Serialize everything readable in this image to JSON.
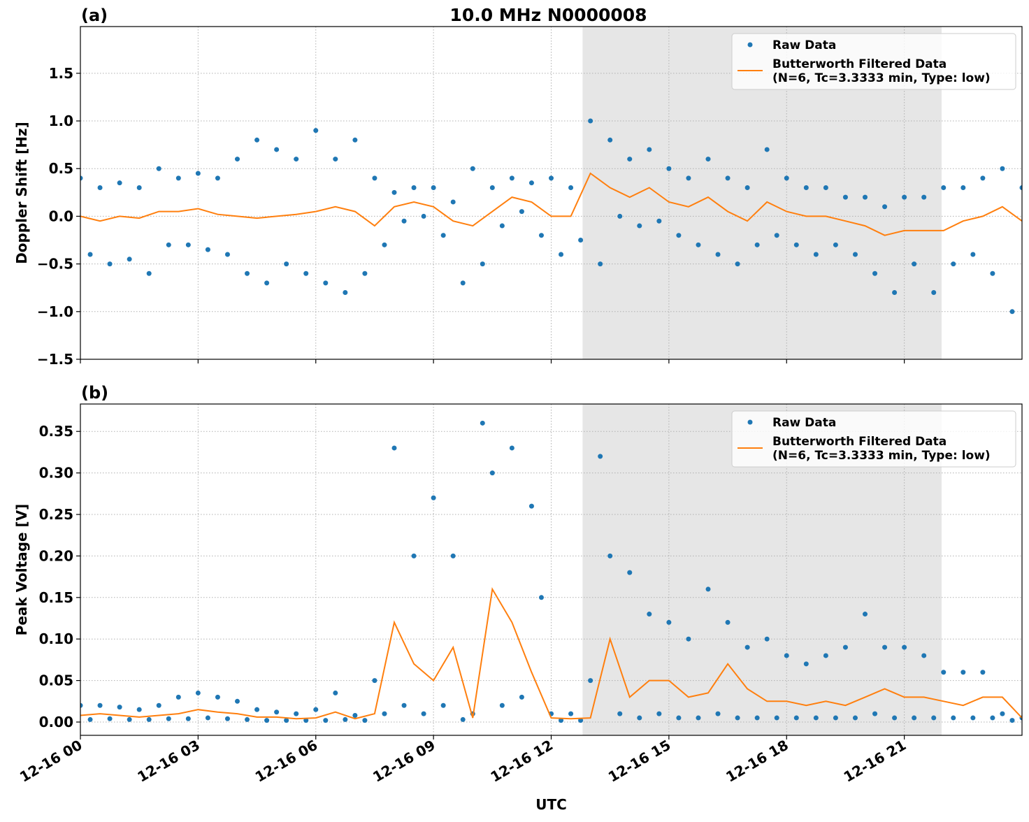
{
  "chart_data": [
    {
      "type": "line",
      "panel_label": "(a)",
      "title": "10.0 MHz N0000008",
      "ylabel": "Doppler Shift [Hz]",
      "xlim": [
        0,
        24
      ],
      "xticks": [
        0,
        3,
        6,
        9,
        12,
        15,
        18,
        21
      ],
      "ylim": [
        -1.5,
        1.99
      ],
      "yticks": [
        {
          "value": -1.5,
          "label": "−1.5"
        },
        {
          "value": -1,
          "label": "−1.0"
        },
        {
          "value": -0.5,
          "label": "−0.5"
        },
        {
          "value": 0,
          "label": "0.0"
        },
        0.5,
        {
          "value": 1,
          "label": "1.0"
        },
        1.5
      ],
      "grid": true,
      "legend": "upper right",
      "span": [
        12.8,
        21.95
      ],
      "span_color": "#e6e6e6",
      "series": [
        {
          "name": "Raw Data",
          "kind": "scatter",
          "color": "#1f77b4",
          "x": [
            0,
            0.25,
            0.5,
            0.75,
            1,
            1.25,
            1.5,
            1.75,
            2,
            2.25,
            2.5,
            2.75,
            3,
            3.25,
            3.5,
            3.75,
            4,
            4.25,
            4.5,
            4.75,
            5,
            5.25,
            5.5,
            5.75,
            6,
            6.25,
            6.5,
            6.75,
            7,
            7.25,
            7.5,
            7.75,
            8,
            8.25,
            8.5,
            8.75,
            9,
            9.25,
            9.5,
            9.75,
            10,
            10.25,
            10.5,
            10.75,
            11,
            11.25,
            11.5,
            11.75,
            12,
            12.25,
            12.5,
            12.75,
            13,
            13.25,
            13.5,
            13.75,
            14,
            14.25,
            14.5,
            14.75,
            15,
            15.25,
            15.5,
            15.75,
            16,
            16.25,
            16.5,
            16.75,
            17,
            17.25,
            17.5,
            17.75,
            18,
            18.25,
            18.5,
            18.75,
            19,
            19.25,
            19.5,
            19.75,
            20,
            20.25,
            20.5,
            20.75,
            21,
            21.25,
            21.5,
            21.75,
            22,
            22.25,
            22.5,
            22.75,
            23,
            23.25,
            23.5,
            23.75,
            24
          ],
          "values": [
            0.4,
            -0.4,
            0.3,
            -0.5,
            0.35,
            -0.45,
            0.3,
            -0.6,
            0.5,
            -0.3,
            0.4,
            -0.3,
            0.45,
            -0.35,
            0.4,
            -0.4,
            0.6,
            -0.6,
            0.8,
            -0.7,
            0.7,
            -0.5,
            0.6,
            -0.6,
            0.9,
            -0.7,
            0.6,
            -0.8,
            0.8,
            -0.6,
            0.4,
            -0.3,
            0.25,
            -0.05,
            0.3,
            0,
            0.3,
            -0.2,
            0.15,
            -0.7,
            0.5,
            -0.5,
            0.3,
            -0.1,
            0.4,
            0.05,
            0.35,
            -0.2,
            0.4,
            -0.4,
            0.3,
            -0.25,
            1,
            -0.5,
            0.8,
            0,
            0.6,
            -0.1,
            0.7,
            -0.05,
            0.5,
            -0.2,
            0.4,
            -0.3,
            0.6,
            -0.4,
            0.4,
            -0.5,
            0.3,
            -0.3,
            0.7,
            -0.2,
            0.4,
            -0.3,
            0.3,
            -0.4,
            0.3,
            -0.3,
            0.2,
            -0.4,
            0.2,
            -0.6,
            0.1,
            -0.8,
            0.2,
            -0.5,
            0.2,
            -0.8,
            0.3,
            -0.5,
            0.3,
            -0.4,
            0.4,
            -0.6,
            0.5,
            -1,
            0.3
          ]
        },
        {
          "name": "Butterworth Filtered Data\n(N=6, Tc=3.3333 min, Type: low)",
          "kind": "line",
          "color": "#ff7f0e",
          "x": [
            0,
            0.5,
            1,
            1.5,
            2,
            2.5,
            3,
            3.5,
            4,
            4.5,
            5,
            5.5,
            6,
            6.5,
            7,
            7.5,
            8,
            8.5,
            9,
            9.5,
            10,
            10.5,
            11,
            11.5,
            12,
            12.5,
            13,
            13.5,
            14,
            14.5,
            15,
            15.5,
            16,
            16.5,
            17,
            17.5,
            18,
            18.5,
            19,
            19.5,
            20,
            20.5,
            21,
            21.5,
            22,
            22.5,
            23,
            23.5,
            24
          ],
          "values": [
            0,
            -0.05,
            0,
            -0.02,
            0.05,
            0.05,
            0.08,
            0.02,
            0,
            -0.02,
            0,
            0.02,
            0.05,
            0.1,
            0.05,
            -0.1,
            0.1,
            0.15,
            0.1,
            -0.05,
            -0.1,
            0.05,
            0.2,
            0.15,
            0,
            0,
            0.45,
            0.3,
            0.2,
            0.3,
            0.15,
            0.1,
            0.2,
            0.05,
            -0.05,
            0.15,
            0.05,
            0,
            0,
            -0.05,
            -0.1,
            -0.2,
            -0.15,
            -0.15,
            -0.15,
            -0.05,
            0,
            0.1,
            -0.05
          ]
        }
      ]
    },
    {
      "type": "line",
      "panel_label": "(b)",
      "ylabel": "Peak Voltage [V]",
      "xlabel": "UTC",
      "xlim": [
        0,
        24
      ],
      "xticks": [
        {
          "value": 0,
          "label": "12-16 00"
        },
        {
          "value": 3,
          "label": "12-16 03"
        },
        {
          "value": 6,
          "label": "12-16 06"
        },
        {
          "value": 9,
          "label": "12-16 09"
        },
        {
          "value": 12,
          "label": "12-16 12"
        },
        {
          "value": 15,
          "label": "12-16 15"
        },
        {
          "value": 18,
          "label": "12-16 18"
        },
        {
          "value": 21,
          "label": "12-16 21"
        }
      ],
      "ylim": [
        -0.016,
        0.383
      ],
      "yticks": [
        {
          "value": 0,
          "label": "0.00"
        },
        0.05,
        {
          "value": 0.1,
          "label": "0.10"
        },
        0.15,
        {
          "value": 0.2,
          "label": "0.20"
        },
        0.25,
        {
          "value": 0.3,
          "label": "0.30"
        },
        0.35
      ],
      "grid": true,
      "legend": "upper right",
      "span": [
        12.8,
        21.95
      ],
      "span_color": "#e6e6e6",
      "series": [
        {
          "name": "Raw Data",
          "kind": "scatter",
          "color": "#1f77b4",
          "x": [
            0,
            0.25,
            0.5,
            0.75,
            1,
            1.25,
            1.5,
            1.75,
            2,
            2.25,
            2.5,
            2.75,
            3,
            3.25,
            3.5,
            3.75,
            4,
            4.25,
            4.5,
            4.75,
            5,
            5.25,
            5.5,
            5.75,
            6,
            6.25,
            6.5,
            6.75,
            7,
            7.25,
            7.5,
            7.75,
            8,
            8.25,
            8.5,
            8.75,
            9,
            9.25,
            9.5,
            9.75,
            10,
            10.25,
            10.5,
            10.75,
            11,
            11.25,
            11.5,
            11.75,
            12,
            12.25,
            12.5,
            12.75,
            13,
            13.25,
            13.5,
            13.75,
            14,
            14.25,
            14.5,
            14.75,
            15,
            15.25,
            15.5,
            15.75,
            16,
            16.25,
            16.5,
            16.75,
            17,
            17.25,
            17.5,
            17.75,
            18,
            18.25,
            18.5,
            18.75,
            19,
            19.25,
            19.5,
            19.75,
            20,
            20.25,
            20.5,
            20.75,
            21,
            21.25,
            21.5,
            21.75,
            22,
            22.25,
            22.5,
            22.75,
            23,
            23.25,
            23.5,
            23.75,
            24
          ],
          "values": [
            0.02,
            0.003,
            0.02,
            0.004,
            0.018,
            0.003,
            0.015,
            0.003,
            0.02,
            0.004,
            0.03,
            0.004,
            0.035,
            0.005,
            0.03,
            0.004,
            0.025,
            0.003,
            0.015,
            0.002,
            0.012,
            0.002,
            0.01,
            0.002,
            0.015,
            0.002,
            0.035,
            0.003,
            0.008,
            0.002,
            0.05,
            0.01,
            0.33,
            0.02,
            0.2,
            0.01,
            0.27,
            0.02,
            0.2,
            0.003,
            0.01,
            0.36,
            0.3,
            0.02,
            0.33,
            0.03,
            0.26,
            0.15,
            0.01,
            0.002,
            0.01,
            0.002,
            0.05,
            0.32,
            0.2,
            0.01,
            0.18,
            0.005,
            0.13,
            0.01,
            0.12,
            0.005,
            0.1,
            0.005,
            0.16,
            0.01,
            0.12,
            0.005,
            0.09,
            0.005,
            0.1,
            0.005,
            0.08,
            0.005,
            0.07,
            0.005,
            0.08,
            0.005,
            0.09,
            0.005,
            0.13,
            0.01,
            0.09,
            0.005,
            0.09,
            0.005,
            0.08,
            0.005,
            0.06,
            0.005,
            0.06,
            0.005,
            0.06,
            0.005,
            0.01,
            0.002,
            0.005
          ]
        },
        {
          "name": "Butterworth Filtered Data\n(N=6, Tc=3.3333 min, Type: low)",
          "kind": "line",
          "color": "#ff7f0e",
          "x": [
            0,
            0.5,
            1,
            1.5,
            2,
            2.5,
            3,
            3.5,
            4,
            4.5,
            5,
            5.5,
            6,
            6.5,
            7,
            7.5,
            8,
            8.5,
            9,
            9.5,
            10,
            10.5,
            11,
            11.5,
            12,
            12.5,
            13,
            13.5,
            14,
            14.5,
            15,
            15.5,
            16,
            16.5,
            17,
            17.5,
            18,
            18.5,
            19,
            19.5,
            20,
            20.5,
            21,
            21.5,
            22,
            22.5,
            23,
            23.5,
            24
          ],
          "values": [
            0.008,
            0.01,
            0.008,
            0.006,
            0.008,
            0.01,
            0.015,
            0.012,
            0.01,
            0.006,
            0.006,
            0.004,
            0.005,
            0.012,
            0.004,
            0.01,
            0.12,
            0.07,
            0.05,
            0.09,
            0.005,
            0.16,
            0.12,
            0.06,
            0.005,
            0.004,
            0.005,
            0.1,
            0.03,
            0.05,
            0.05,
            0.03,
            0.035,
            0.07,
            0.04,
            0.025,
            0.025,
            0.02,
            0.025,
            0.02,
            0.03,
            0.04,
            0.03,
            0.03,
            0.025,
            0.02,
            0.03,
            0.03,
            0.005
          ]
        }
      ]
    }
  ]
}
